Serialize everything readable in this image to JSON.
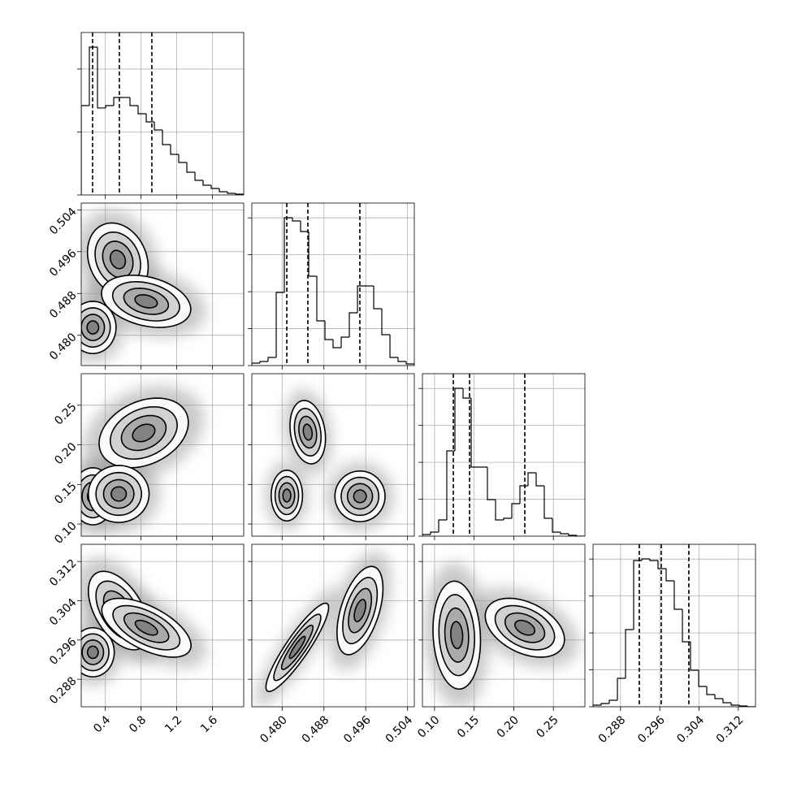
{
  "chart_data": [
    {
      "type": "histogram",
      "bins": [
        0.13,
        0.221,
        0.312,
        0.403,
        0.494,
        0.585,
        0.676,
        0.767,
        0.858,
        0.949,
        1.04,
        1.131,
        1.222,
        1.313,
        1.404,
        1.495,
        1.586,
        1.677,
        1.768,
        1.859,
        1.95
      ],
      "counts": [
        1419,
        2348,
        1381,
        1419,
        1548,
        1548,
        1419,
        1290,
        1161,
        1032,
        800,
        645,
        516,
        361,
        232,
        155,
        103,
        52,
        26,
        13
      ],
      "quantiles": [
        0.257,
        0.557,
        0.921
      ],
      "xlim": [
        0.13,
        1.95
      ],
      "xticks": [
        0.4,
        0.8,
        1.2,
        1.6
      ],
      "ylim": [
        0,
        2580
      ],
      "yticks": [
        0,
        1000,
        2000
      ]
    },
    {
      "type": "contour",
      "clusters": [
        {
          "center": [
            0.54,
            0.4945
          ],
          "sx": 0.17,
          "sy": 0.0035,
          "rho": -0.2
        },
        {
          "center": [
            0.857,
            0.4865
          ],
          "sx": 0.25,
          "sy": 0.0025,
          "rho": -0.3
        },
        {
          "center": [
            0.26,
            0.4815
          ],
          "sx": 0.13,
          "sy": 0.0025,
          "rho": 0
        }
      ],
      "levels": [
        0.5,
        1.0,
        1.5,
        2.0
      ],
      "xlim": [
        0.13,
        1.95
      ],
      "xticks": [
        0.4,
        0.8,
        1.2,
        1.6
      ],
      "ylim": [
        0.4742,
        0.5053
      ],
      "yticks": [
        {
          "value": 0.48,
          "label": "0.480"
        },
        0.488,
        0.496,
        0.504
      ]
    },
    {
      "type": "histogram",
      "bins": [
        0.4742,
        0.47576,
        0.47731,
        0.47887,
        0.48042,
        0.48198,
        0.48353,
        0.48509,
        0.48664,
        0.4882,
        0.48975,
        0.49131,
        0.49286,
        0.49442,
        0.49597,
        0.49753,
        0.49908,
        0.50064,
        0.50219,
        0.50375,
        0.5053
      ],
      "counts": [
        33,
        55,
        110,
        990,
        2002,
        1958,
        1815,
        1210,
        605,
        352,
        242,
        385,
        715,
        1078,
        1078,
        770,
        418,
        110,
        55,
        22
      ],
      "quantiles": [
        0.48089,
        0.48493,
        0.49488
      ],
      "xlim": [
        0.4742,
        0.5053
      ],
      "xticks": [
        {
          "value": 0.48,
          "label": "0.480"
        },
        0.488,
        0.496,
        0.504
      ],
      "ylim": [
        0,
        2200
      ],
      "yticks": [
        0,
        500,
        1000,
        1500,
        2000
      ]
    },
    {
      "type": "contour",
      "clusters": [
        {
          "center": [
            0.83,
            0.215
          ],
          "sx": 0.25,
          "sy": 0.022,
          "rho": 0.3
        },
        {
          "center": [
            0.26,
            0.135
          ],
          "sx": 0.12,
          "sy": 0.018,
          "rho": 0
        },
        {
          "center": [
            0.55,
            0.138
          ],
          "sx": 0.17,
          "sy": 0.018,
          "rho": 0
        }
      ],
      "levels": [
        0.5,
        1.0,
        1.5,
        2.0
      ],
      "xlim": [
        0.13,
        1.95
      ],
      "xticks": [
        0.4,
        0.8,
        1.2,
        1.6
      ],
      "ylim": [
        0.0847,
        0.2898
      ],
      "yticks": [
        {
          "value": 0.1,
          "label": "0.10"
        },
        0.15,
        {
          "value": 0.2,
          "label": "0.20"
        },
        0.25
      ]
    },
    {
      "type": "contour",
      "clusters": [
        {
          "center": [
            0.4809,
            0.136
          ],
          "sx": 0.0015,
          "sy": 0.016,
          "rho": 0
        },
        {
          "center": [
            0.4849,
            0.216
          ],
          "sx": 0.0017,
          "sy": 0.02,
          "rho": -0.2
        },
        {
          "center": [
            0.4949,
            0.135
          ],
          "sx": 0.0024,
          "sy": 0.016,
          "rho": 0
        }
      ],
      "levels": [
        0.5,
        1.0,
        1.5,
        2.0
      ],
      "xlim": [
        0.4742,
        0.5053
      ],
      "xticks": [
        {
          "value": 0.48,
          "label": "0.480"
        },
        0.488,
        0.496,
        0.504
      ],
      "ylim": [
        0.0847,
        0.2898
      ],
      "yticks": [
        {
          "value": 0.1,
          "label": "0.10"
        },
        0.15,
        {
          "value": 0.2,
          "label": "0.20"
        },
        0.25
      ]
    },
    {
      "type": "histogram",
      "bins": [
        0.0847,
        0.09496,
        0.10521,
        0.11547,
        0.12572,
        0.13598,
        0.14623,
        0.15649,
        0.16674,
        0.177,
        0.18725,
        0.19751,
        0.20776,
        0.21802,
        0.22827,
        0.23853,
        0.24878,
        0.25904,
        0.26929,
        0.27955,
        0.2898
      ],
      "counts": [
        22,
        55,
        220,
        1155,
        2002,
        1870,
        935,
        935,
        495,
        220,
        242,
        440,
        682,
        858,
        682,
        242,
        55,
        33,
        11,
        0
      ],
      "quantiles": [
        0.1237,
        0.1442,
        0.2139
      ],
      "xlim": [
        0.0847,
        0.2898
      ],
      "xticks": [
        {
          "value": 0.1,
          "label": "0.10"
        },
        0.15,
        {
          "value": 0.2,
          "label": "0.20"
        },
        0.25
      ],
      "ylim": [
        0,
        2200
      ],
      "yticks": [
        0,
        500,
        1000,
        1500,
        2000
      ]
    },
    {
      "type": "contour",
      "clusters": [
        {
          "center": [
            0.26,
            0.2935
          ],
          "sx": 0.12,
          "sy": 0.0025,
          "rho": 0
        },
        {
          "center": [
            0.55,
            0.302
          ],
          "sx": 0.17,
          "sy": 0.004,
          "rho": -0.5
        },
        {
          "center": [
            0.86,
            0.2985
          ],
          "sx": 0.25,
          "sy": 0.003,
          "rho": -0.6
        }
      ],
      "levels": [
        0.5,
        1.0,
        1.5,
        2.0
      ],
      "xlim": [
        0.13,
        1.95
      ],
      "xticks": [
        0.4,
        0.8,
        1.2,
        1.6
      ],
      "ylim": [
        0.2824,
        0.3155
      ],
      "yticks": [
        0.288,
        0.296,
        0.304,
        0.312
      ]
    },
    {
      "type": "contour",
      "clusters": [
        {
          "center": [
            0.4829,
            0.2945
          ],
          "sx": 0.003,
          "sy": 0.0045,
          "rho": 0.9
        },
        {
          "center": [
            0.4949,
            0.302
          ],
          "sx": 0.0022,
          "sy": 0.0045,
          "rho": 0.5
        }
      ],
      "levels": [
        0.5,
        1.0,
        1.5,
        2.0
      ],
      "xlim": [
        0.4742,
        0.5053
      ],
      "xticks": [
        {
          "value": 0.48,
          "label": "0.480"
        },
        0.488,
        0.496,
        0.504
      ],
      "ylim": [
        0.2824,
        0.3155
      ],
      "yticks": [
        0.288,
        0.296,
        0.304,
        0.312
      ]
    },
    {
      "type": "contour",
      "clusters": [
        {
          "center": [
            0.128,
            0.297
          ],
          "sx": 0.015,
          "sy": 0.0055,
          "rho": -0.1
        },
        {
          "center": [
            0.214,
            0.2985
          ],
          "sx": 0.025,
          "sy": 0.003,
          "rho": -0.4
        }
      ],
      "levels": [
        0.5,
        1.0,
        1.5,
        2.0
      ],
      "xlim": [
        0.0847,
        0.2898
      ],
      "xticks": [
        {
          "value": 0.1,
          "label": "0.10"
        },
        0.15,
        {
          "value": 0.2,
          "label": "0.20"
        },
        0.25
      ],
      "ylim": [
        0.2824,
        0.3155
      ],
      "yticks": [
        0.288,
        0.296,
        0.304,
        0.312
      ]
    },
    {
      "type": "histogram",
      "bins": [
        0.2824,
        0.28406,
        0.28571,
        0.28737,
        0.28902,
        0.29068,
        0.29233,
        0.29399,
        0.29564,
        0.2973,
        0.29895,
        0.30061,
        0.30226,
        0.30392,
        0.30557,
        0.30723,
        0.30888,
        0.31054,
        0.31219,
        0.31385,
        0.3155
      ],
      "counts": [
        22,
        44,
        88,
        385,
        1045,
        1980,
        2002,
        1980,
        1870,
        1705,
        1320,
        880,
        495,
        275,
        165,
        110,
        55,
        22,
        11,
        0
      ],
      "quantiles": [
        0.29183,
        0.2963,
        0.30192
      ],
      "xlim": [
        0.2824,
        0.3155
      ],
      "xticks": [
        0.288,
        0.296,
        0.304,
        0.312
      ],
      "ylim": [
        0,
        2200
      ],
      "yticks": [
        0,
        500,
        1000,
        1500,
        2000
      ]
    }
  ]
}
